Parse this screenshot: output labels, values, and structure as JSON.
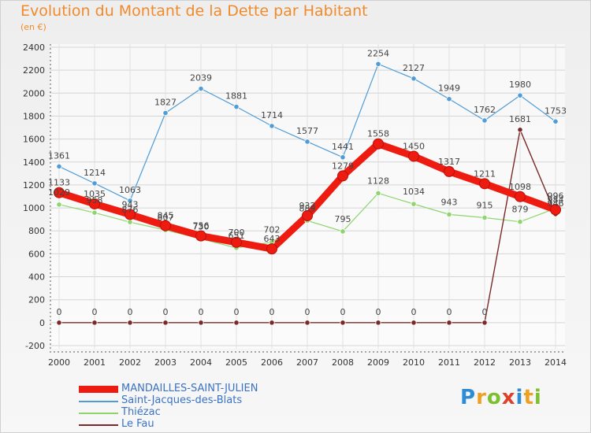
{
  "title": "Evolution du Montant de la Dette par Habitant",
  "subtitle": "(en €)",
  "logo": "Proxiti",
  "chart_data": {
    "type": "line",
    "x": [
      "2000",
      "2001",
      "2002",
      "2003",
      "2004",
      "2005",
      "2006",
      "2007",
      "2008",
      "2009",
      "2010",
      "2011",
      "2012",
      "2013",
      "2014"
    ],
    "ylim": [
      -200,
      2400
    ],
    "yticks": [
      "-200",
      "0",
      "200",
      "400",
      "600",
      "800",
      "1000",
      "1200",
      "1400",
      "1600",
      "1800",
      "2000",
      "2200",
      "2400"
    ],
    "grid": true,
    "legend": "bottom-left",
    "series": [
      {
        "name": "MANDAILLES-SAINT-JULIEN",
        "color": "#ee1b11",
        "values": [
          1133,
          1035,
          943,
          845,
          756,
          700,
          643,
          932,
          1279,
          1558,
          1450,
          1317,
          1211,
          1098,
          984
        ],
        "labels": [
          "1133",
          "1035",
          "943",
          "845",
          "756",
          "700",
          "643",
          "932",
          "1279",
          "1558",
          "1450",
          "1317",
          "1211",
          "1098",
          "984"
        ]
      },
      {
        "name": "Saint-Jacques-des-Blats",
        "color": "#4f9cd7",
        "values": [
          1361,
          1214,
          1063,
          1827,
          2039,
          1881,
          1714,
          1577,
          1441,
          2254,
          2127,
          1949,
          1762,
          1980,
          1753
        ],
        "labels": [
          "1361",
          "1214",
          "1063",
          "1827",
          "2039",
          "1881",
          "1714",
          "1577",
          "1441",
          "2254",
          "2127",
          "1949",
          "1762",
          "1980",
          "1753"
        ]
      },
      {
        "name": "Thiézac",
        "color": "#8fd56e",
        "values": [
          1029,
          958,
          876,
          807,
          730,
          651,
          702,
          889,
          795,
          1128,
          1034,
          943,
          915,
          879,
          996
        ],
        "labels": [
          "1029",
          "958",
          "876",
          "807",
          "730",
          "651",
          "702",
          "889",
          "795",
          "1128",
          "1034",
          "943",
          "915",
          "879",
          "996"
        ]
      },
      {
        "name": "Le Fau",
        "color": "#7a2a2a",
        "values": [
          0,
          0,
          0,
          0,
          0,
          0,
          0,
          0,
          0,
          0,
          0,
          0,
          0,
          1681,
          946
        ],
        "labels": [
          "0",
          "0",
          "0",
          "0",
          "0",
          "0",
          "0",
          "0",
          "0",
          "0",
          "0",
          "0",
          "0",
          "1681",
          "946"
        ]
      }
    ]
  }
}
